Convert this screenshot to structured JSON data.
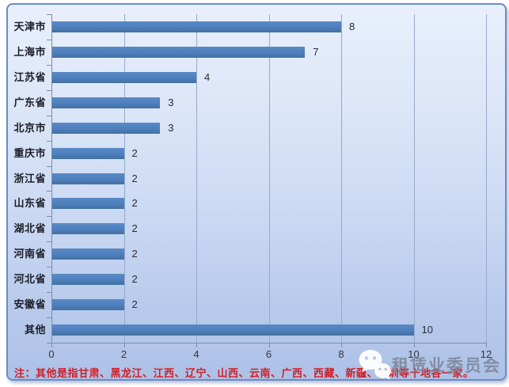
{
  "chart_data": {
    "type": "bar",
    "orientation": "horizontal",
    "title": "",
    "categories": [
      "天津市",
      "上海市",
      "江苏省",
      "广东省",
      "北京市",
      "重庆市",
      "浙江省",
      "山东省",
      "湖北省",
      "河南省",
      "河北省",
      "安徽省",
      "其他"
    ],
    "values": [
      8,
      7,
      4,
      3,
      3,
      2,
      2,
      2,
      2,
      2,
      2,
      2,
      10
    ],
    "data_labels": [
      "8",
      "7",
      "4",
      "3",
      "3",
      "2",
      "2",
      "2",
      "2",
      "2",
      "2",
      "2",
      "10"
    ],
    "x_ticks": [
      "0",
      "2",
      "4",
      "6",
      "8",
      "10",
      "12"
    ],
    "xlim": [
      0,
      12
    ],
    "xlabel": "",
    "ylabel": "",
    "grid": true,
    "legend": "none",
    "bar_color": "#4d7fbe"
  },
  "note": {
    "text": "注：其他是指甘肃、黑龙江、江西、辽宁、山西、云南、广西、西藏、新疆、深圳等十地各一家。"
  },
  "watermark": {
    "icon": "wechat-icon",
    "text": "租赁业委员会"
  },
  "colors": {
    "bar": "#4d7fbe",
    "grid": "#97a9cb",
    "axis": "#7c8cab",
    "panel_border": "#6b8cc9",
    "category_text": "#1c1c26",
    "note_text": "#d01f26",
    "watermark_text": "#7b8598"
  }
}
